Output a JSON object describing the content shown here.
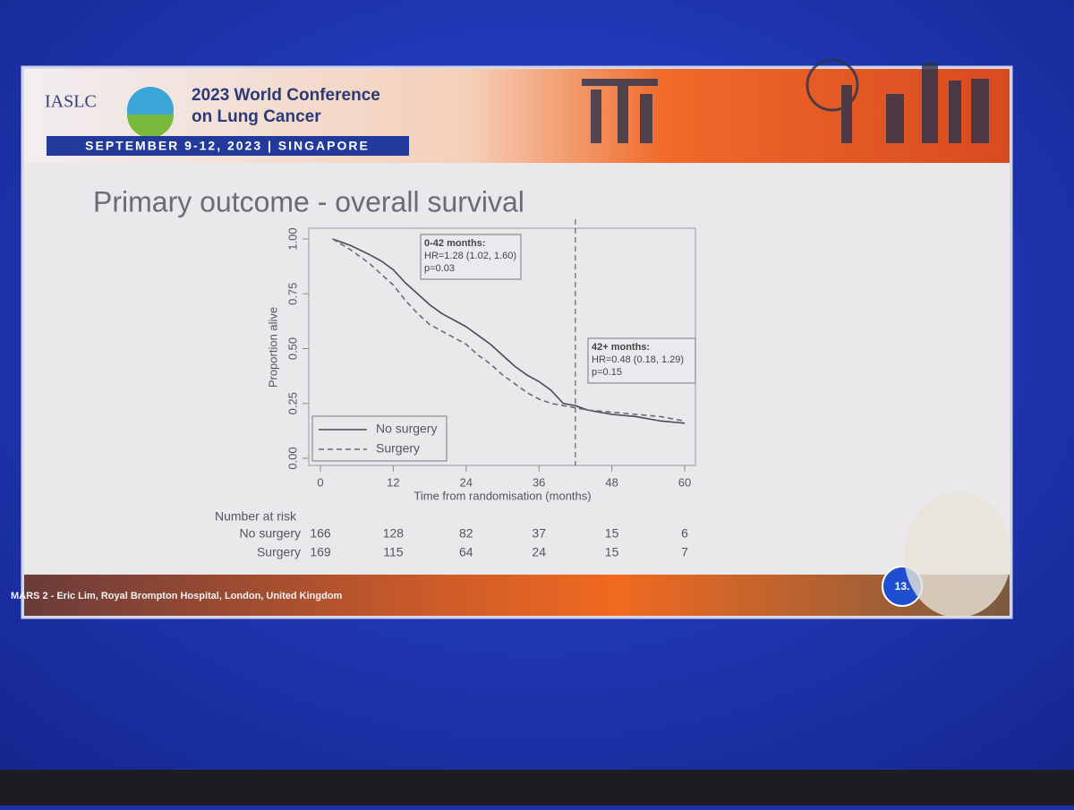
{
  "slide": {
    "org": "IASLC",
    "conference_line1": "2023 World Conference",
    "conference_line2": "on Lung Cancer",
    "dates": "SEPTEMBER 9-12, 2023 | SINGAPORE",
    "title": "Primary outcome - overall survival",
    "footer": "MARS 2 - Eric Lim, Royal Brompton Hospital, London, United Kingdom",
    "page_number": "13."
  },
  "chart_data": {
    "type": "line",
    "x_label": "Time from randomisation (months)",
    "y_label": "Proportion alive",
    "x": [
      2,
      5,
      8,
      10,
      12,
      14,
      16,
      18,
      20,
      22,
      24,
      26,
      28,
      30,
      32,
      34,
      36,
      38,
      40,
      42,
      44,
      48,
      52,
      56,
      60
    ],
    "series": [
      {
        "name": "No surgery",
        "color": "#4a4a52",
        "dash": false,
        "values": [
          1.0,
          0.97,
          0.93,
          0.9,
          0.86,
          0.8,
          0.75,
          0.7,
          0.66,
          0.63,
          0.6,
          0.56,
          0.52,
          0.47,
          0.42,
          0.38,
          0.35,
          0.31,
          0.25,
          0.24,
          0.22,
          0.2,
          0.19,
          0.17,
          0.16
        ]
      },
      {
        "name": "Surgery",
        "color": "#6a6a72",
        "dash": true,
        "values": [
          1.0,
          0.95,
          0.89,
          0.84,
          0.79,
          0.72,
          0.66,
          0.61,
          0.58,
          0.55,
          0.52,
          0.47,
          0.43,
          0.38,
          0.34,
          0.3,
          0.27,
          0.25,
          0.24,
          0.23,
          0.22,
          0.21,
          0.2,
          0.19,
          0.17
        ]
      }
    ],
    "xlim": [
      0,
      60
    ],
    "ylim": [
      0,
      1
    ],
    "xticks": [
      0,
      12,
      24,
      36,
      48,
      60
    ],
    "yticks": [
      {
        "value": 0,
        "label": "0.00"
      },
      {
        "value": 0.25,
        "label": "0.25"
      },
      {
        "value": 0.5,
        "label": "0.50"
      },
      {
        "value": 0.75,
        "label": "0.75"
      },
      {
        "value": 1,
        "label": "1.00"
      }
    ],
    "reference_line_x": 42,
    "annotations": [
      {
        "lines": [
          "0-42 months:",
          "HR=1.28 (1.02, 1.60)",
          "p=0.03"
        ]
      },
      {
        "lines": [
          "42+ months:",
          "HR=0.48 (0.18, 1.29)",
          "p=0.15"
        ]
      }
    ],
    "risk_table": {
      "title": "Number at risk",
      "rows": [
        {
          "name": "No surgery",
          "counts": [
            166,
            128,
            82,
            37,
            15,
            6
          ]
        },
        {
          "name": "Surgery",
          "counts": [
            169,
            115,
            64,
            24,
            15,
            7
          ]
        }
      ]
    }
  }
}
